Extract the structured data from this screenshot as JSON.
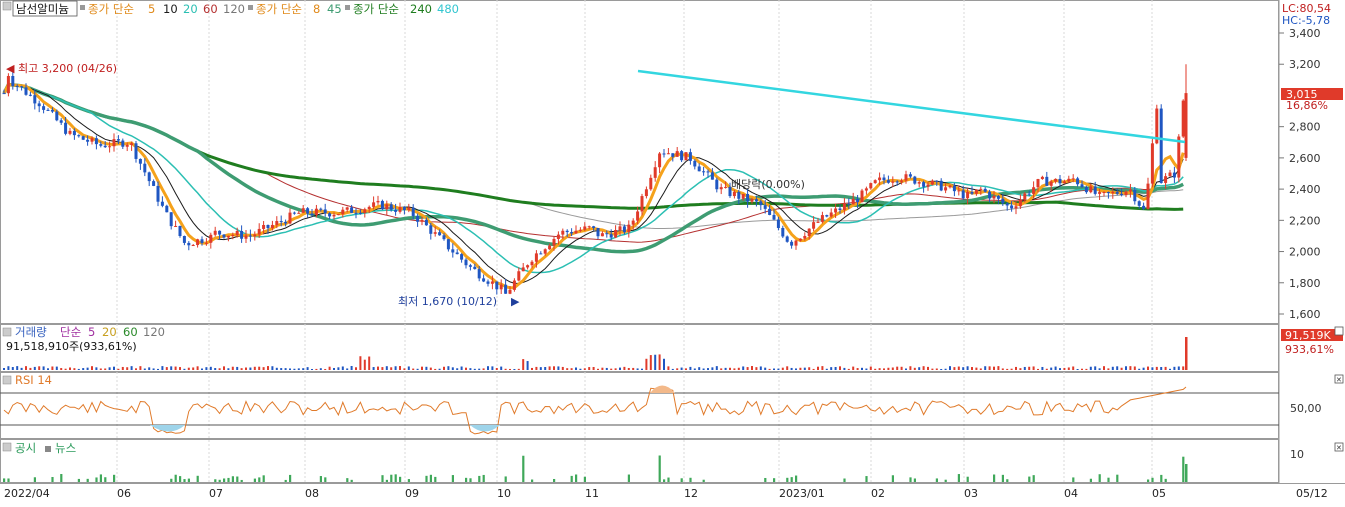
{
  "legend": {
    "stock_name": "남선알미늄",
    "ma_group1_prefix": "종가 단순",
    "ma_group1_periods": [
      "5",
      "10",
      "20",
      "60",
      "120"
    ],
    "ma_group2_prefix": "종가 단순",
    "ma_group2_periods": [
      "8",
      "45"
    ],
    "ma_group3_prefix": "종가 단순",
    "ma_group3_periods": [
      "240",
      "480"
    ]
  },
  "price_panel": {
    "lc_label": "LC:80,54",
    "hc_label": "HC:-5,78",
    "high_annotation": "최고 3,200 (04/26)",
    "low_annotation": "최저 1,670 (10/12)",
    "dividend_annotation": "배당락(0.00%)",
    "current_price": "3,015",
    "current_change": "16,86%",
    "y_ticks": [
      {
        "value": 3400,
        "label": "3,400"
      },
      {
        "value": 3200,
        "label": "3,200"
      },
      {
        "value": 2800,
        "label": "2,800"
      },
      {
        "value": 2600,
        "label": "2,600"
      },
      {
        "value": 2400,
        "label": "2,400"
      },
      {
        "value": 2200,
        "label": "2,200"
      },
      {
        "value": 2000,
        "label": "2,000"
      },
      {
        "value": 1800,
        "label": "1,800"
      },
      {
        "value": 1600,
        "label": "1,600"
      }
    ]
  },
  "volume_panel": {
    "title": "거래량",
    "ma_prefix": "단순",
    "ma_periods": [
      "5",
      "20",
      "60",
      "120"
    ],
    "value_text": "91,518,910주(933,61%)",
    "badge_value": "91,519K",
    "badge_pct": "933,61%"
  },
  "rsi_panel": {
    "title": "RSI 14",
    "y_tick_label": "50,00"
  },
  "news_panel": {
    "label_disclosure": "공시",
    "label_news": "뉴스",
    "y_tick_label": "10"
  },
  "x_axis": {
    "labels": [
      "2022/04",
      "06",
      "07",
      "08",
      "09",
      "10",
      "11",
      "12",
      "2023/01",
      "02",
      "03",
      "04",
      "05"
    ],
    "right_label": "05/12"
  },
  "colors": {
    "up": "#e03a2a",
    "down": "#1f56c2",
    "ma5": "#f5a21b",
    "ma10": "#1b1b1b",
    "ma20": "#2bbfb3",
    "ma60": "#b53030",
    "ma120": "#9a9a9a",
    "ma8": "#f5a21b",
    "ma45": "#3e9c72",
    "ma240": "#1f7d1f",
    "ma480": "#33d6e0",
    "rsi": "#e07a2a"
  },
  "chart_data": {
    "type": "candlestick",
    "title": "남선알미늄",
    "time_range": [
      "2022/04",
      "05/12"
    ],
    "y_range": [
      1560,
      3460
    ],
    "price_path": [
      {
        "period": "2022/04",
        "approx_close": 3100
      },
      {
        "period": "06",
        "approx_close": 2700
      },
      {
        "period": "07",
        "approx_close": 2100
      },
      {
        "period": "08",
        "approx_close": 2250
      },
      {
        "period": "09",
        "approx_close": 2250
      },
      {
        "period": "10",
        "approx_close": 1750
      },
      {
        "period": "11",
        "approx_close": 2150
      },
      {
        "period": "12",
        "approx_close": 2600
      },
      {
        "period": "2023/01",
        "approx_close": 2100
      },
      {
        "period": "02",
        "approx_close": 2450
      },
      {
        "period": "03",
        "approx_close": 2350
      },
      {
        "period": "04",
        "approx_close": 2450
      },
      {
        "period": "05",
        "approx_close": 3015
      }
    ],
    "annotations": [
      {
        "text": "최고 3,200 (04/26)",
        "value": 3200
      },
      {
        "text": "최저 1,670 (10/12)",
        "value": 1670
      },
      {
        "text": "배당락(0.00%)",
        "period": "12"
      }
    ]
  }
}
